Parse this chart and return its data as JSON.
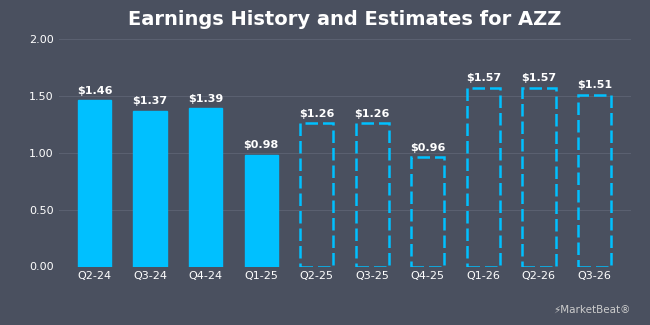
{
  "title": "Earnings History and Estimates for AZZ",
  "categories": [
    "Q2-24",
    "Q3-24",
    "Q4-24",
    "Q1-25",
    "Q2-25",
    "Q3-25",
    "Q4-25",
    "Q1-26",
    "Q2-26",
    "Q3-26"
  ],
  "values": [
    1.46,
    1.37,
    1.39,
    0.98,
    1.26,
    1.26,
    0.96,
    1.57,
    1.57,
    1.51
  ],
  "labels": [
    "$1.46",
    "$1.37",
    "$1.39",
    "$0.98",
    "$1.26",
    "$1.26",
    "$0.96",
    "$1.57",
    "$1.57",
    "$1.51"
  ],
  "is_estimate": [
    false,
    false,
    false,
    false,
    true,
    true,
    true,
    true,
    true,
    true
  ],
  "bar_color": "#00c0ff",
  "background_color": "#4a505f",
  "text_color": "#ffffff",
  "grid_color": "#5a6070",
  "ylim": [
    0,
    2.0
  ],
  "yticks": [
    0.0,
    0.5,
    1.0,
    1.5,
    2.0
  ],
  "title_fontsize": 14,
  "label_fontsize": 8,
  "tick_fontsize": 8,
  "bar_width": 0.6
}
